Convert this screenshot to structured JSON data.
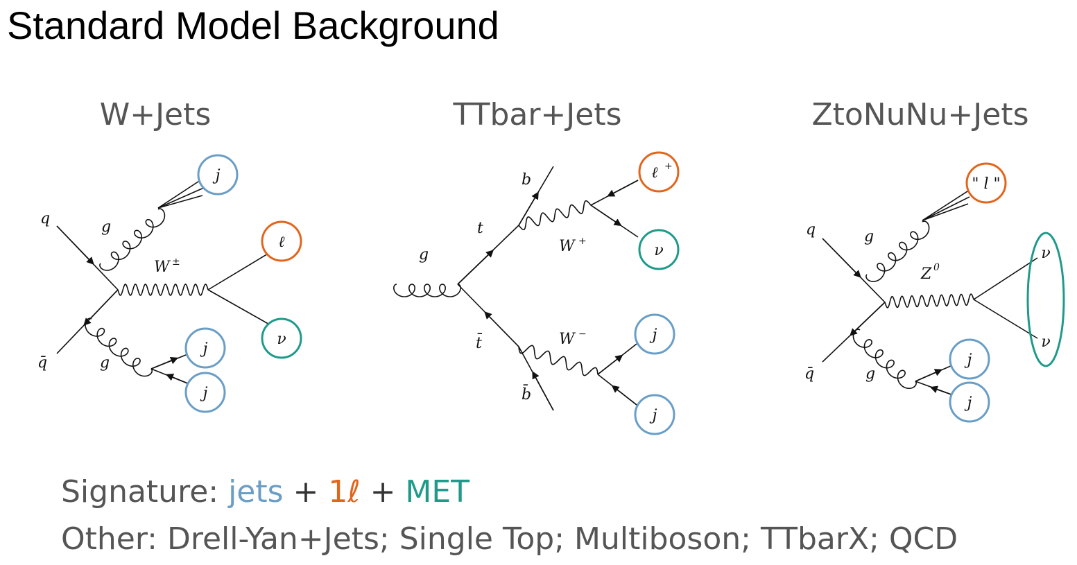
{
  "title": "Standard Model Background",
  "colors": {
    "jet": "#6a9ec6",
    "lepton": "#e2651c",
    "met": "#1f9a8a",
    "text_gray": "#555555"
  },
  "diagrams": [
    {
      "title": "W+Jets",
      "labels": {
        "q": "q",
        "qbar": "q̄",
        "g_top": "g",
        "g_bottom": "g",
        "boson": "W",
        "boson_sup": "±",
        "jet1": "j",
        "jet2": "j",
        "jet3": "j",
        "lepton": "ℓ",
        "nu": "ν"
      }
    },
    {
      "title": "TTbar+Jets",
      "labels": {
        "g": "g",
        "t": "t",
        "tbar": "t̄",
        "b": "b",
        "bbar": "b̄",
        "wplus": "W",
        "wplus_sup": "+",
        "wminus": "W",
        "wminus_sup": "−",
        "lepton": "ℓ",
        "lepton_sup": "+",
        "nu": "ν",
        "jet1": "j",
        "jet2": "j"
      }
    },
    {
      "title": "ZtoNuNu+Jets",
      "labels": {
        "q": "q",
        "qbar": "q̄",
        "g_top": "g",
        "g_bottom": "g",
        "boson": "Z",
        "boson_sup": "0",
        "lepton": "\" l \"",
        "nu1": "ν",
        "nu2": "ν",
        "jet1": "j",
        "jet2": "j"
      }
    }
  ],
  "signature": {
    "prefix": "Signature: ",
    "jets": "jets",
    "plus1": " + ",
    "lepton": "1ℓ",
    "plus2": " + ",
    "met": "MET"
  },
  "other": "Other: Drell-Yan+Jets; Single Top; Multiboson; TTbarX; QCD"
}
